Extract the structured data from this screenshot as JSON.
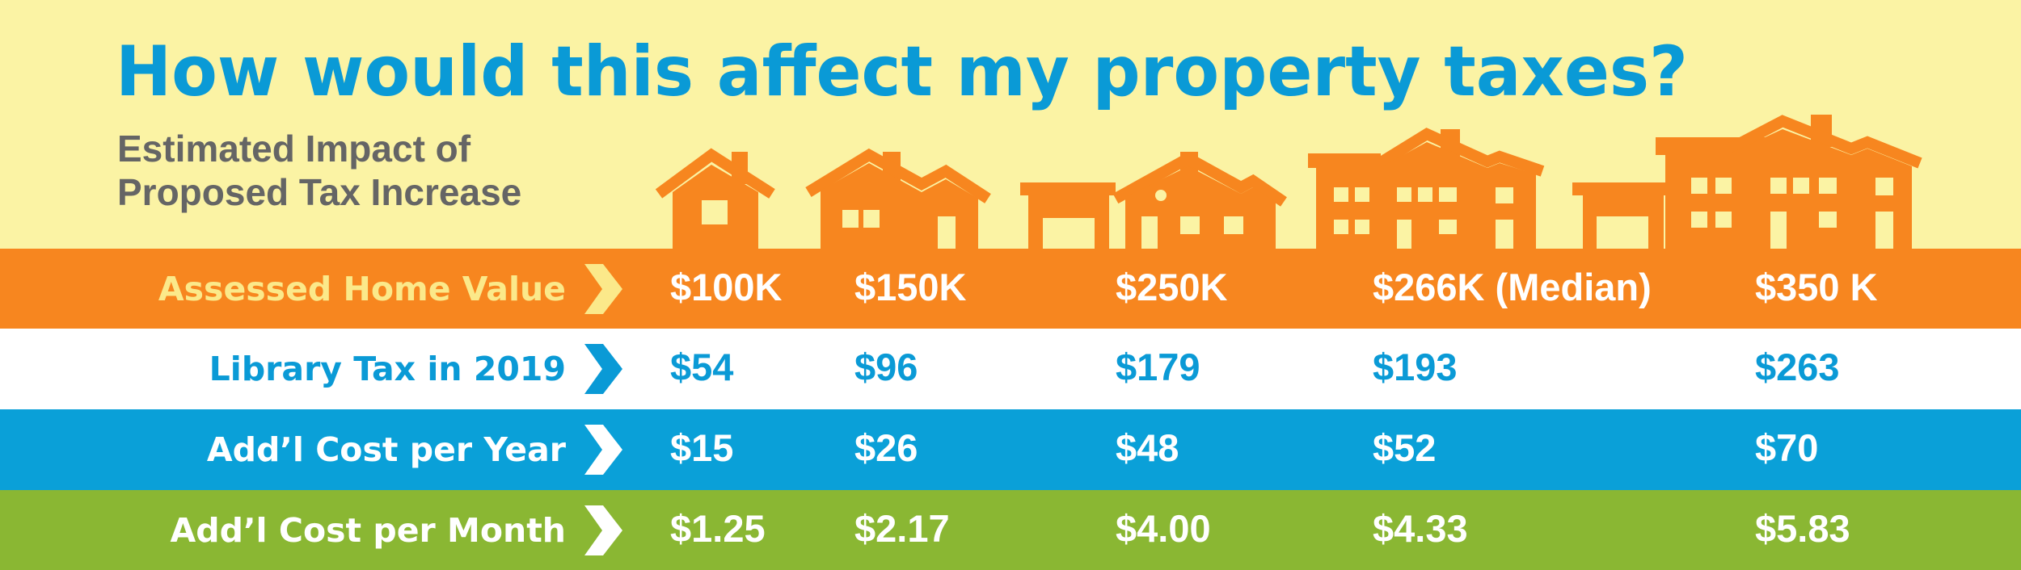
{
  "header": {
    "title": "How would this affect my property taxes?",
    "subtitle": [
      "Estimated Impact of",
      "Proposed Tax Increase"
    ]
  },
  "table": {
    "rows": [
      {
        "label": "Assessed Home Value",
        "values": [
          "$100K",
          "$150K",
          "$250K",
          "$266K (Median)",
          "$350 K"
        ]
      },
      {
        "label": "Library Tax in 2019",
        "values": [
          "$54",
          "$96",
          "$179",
          "$193",
          "$263"
        ]
      },
      {
        "label": "Add’l Cost per Year",
        "values": [
          "$15",
          "$26",
          "$48",
          "$52",
          "$70"
        ]
      },
      {
        "label": "Add’l Cost per Month",
        "values": [
          "$1.25",
          "$2.17",
          "$4.00",
          "$4.33",
          "$5.83"
        ]
      }
    ]
  }
}
